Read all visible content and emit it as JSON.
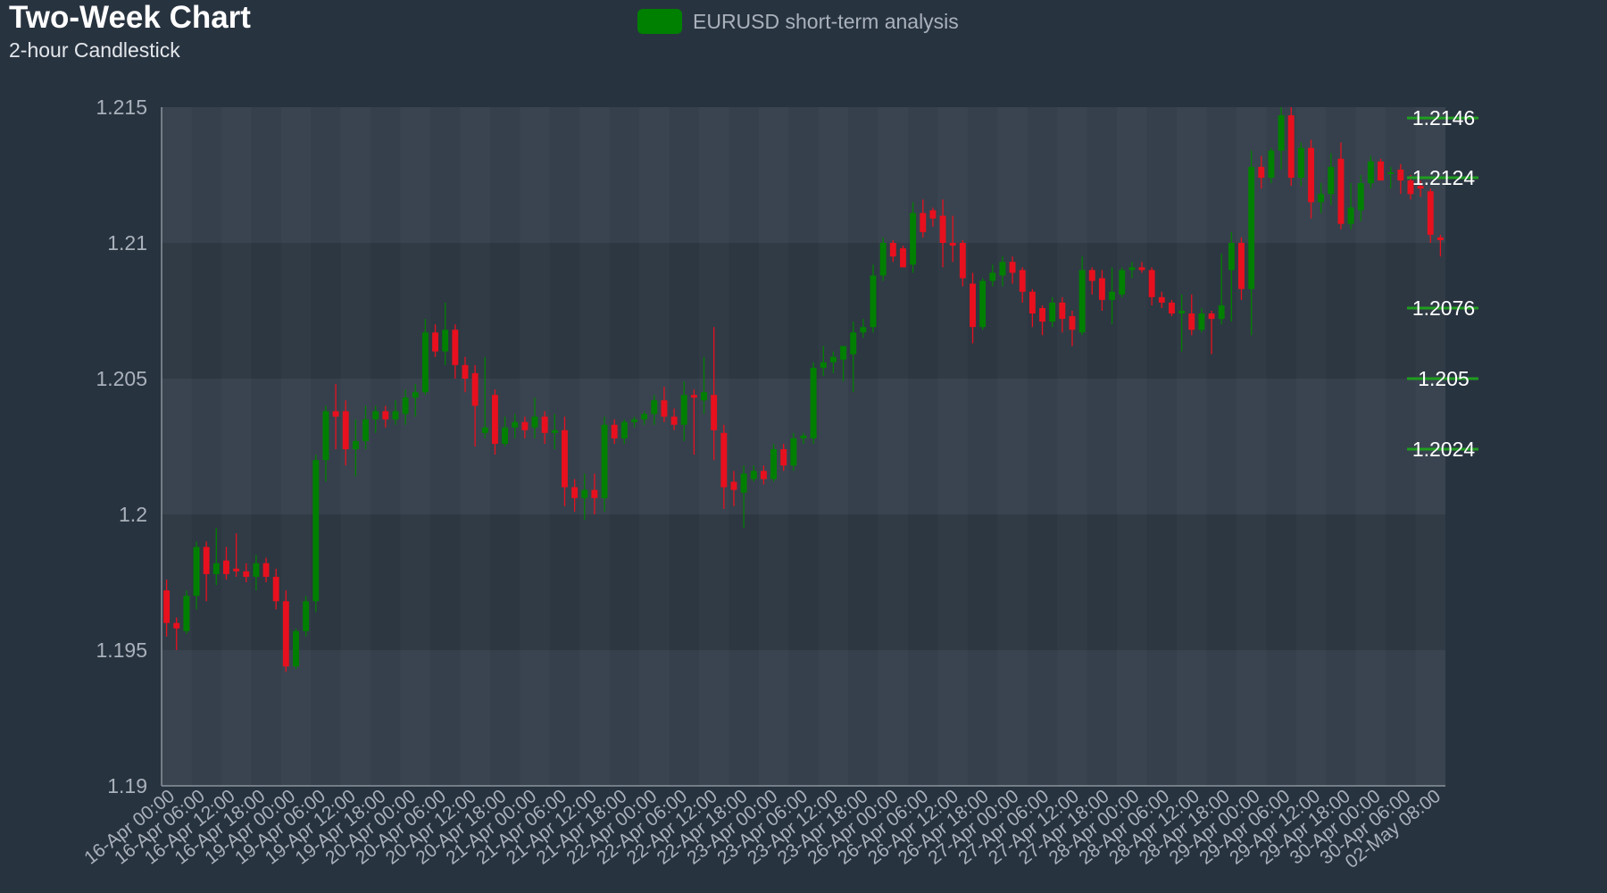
{
  "chart_data": {
    "type": "candlestick",
    "title": "Two-Week Chart",
    "subtitle": "2-hour Candlestick",
    "legend": {
      "label": "EURUSD short-term analysis",
      "color": "#008000",
      "position": "top-center"
    },
    "ylim": [
      1.19,
      1.215
    ],
    "yticks": [
      "1.19",
      "1.195",
      "1.2",
      "1.205",
      "1.21",
      "1.215"
    ],
    "xlabels": [
      "16-Apr 00:00",
      "16-Apr 06:00",
      "16-Apr 12:00",
      "16-Apr 18:00",
      "19-Apr 00:00",
      "19-Apr 06:00",
      "19-Apr 12:00",
      "19-Apr 18:00",
      "20-Apr 00:00",
      "20-Apr 06:00",
      "20-Apr 12:00",
      "20-Apr 18:00",
      "21-Apr 00:00",
      "21-Apr 06:00",
      "21-Apr 12:00",
      "21-Apr 18:00",
      "22-Apr 00:00",
      "22-Apr 06:00",
      "22-Apr 12:00",
      "22-Apr 18:00",
      "23-Apr 00:00",
      "23-Apr 06:00",
      "23-Apr 12:00",
      "23-Apr 18:00",
      "26-Apr 00:00",
      "26-Apr 06:00",
      "26-Apr 12:00",
      "26-Apr 18:00",
      "27-Apr 00:00",
      "27-Apr 06:00",
      "27-Apr 12:00",
      "27-Apr 18:00",
      "28-Apr 00:00",
      "28-Apr 06:00",
      "28-Apr 12:00",
      "28-Apr 18:00",
      "29-Apr 00:00",
      "29-Apr 06:00",
      "29-Apr 12:00",
      "29-Apr 18:00",
      "30-Apr 00:00",
      "30-Apr 06:00",
      "02-May 08:00"
    ],
    "levels": [
      {
        "value": 1.2146,
        "label": "1.2146"
      },
      {
        "value": 1.2124,
        "label": "1.2124"
      },
      {
        "value": 1.2076,
        "label": "1.2076"
      },
      {
        "value": 1.205,
        "label": "1.205"
      },
      {
        "value": 1.2024,
        "label": "1.2024"
      }
    ],
    "colors": {
      "up": "#008000",
      "down": "#e8101e",
      "level": "#1f9d1f"
    },
    "candles": [
      {
        "o": 1.1972,
        "h": 1.1976,
        "l": 1.1955,
        "c": 1.196
      },
      {
        "o": 1.196,
        "h": 1.1962,
        "l": 1.195,
        "c": 1.1958
      },
      {
        "o": 1.1957,
        "h": 1.1972,
        "l": 1.1956,
        "c": 1.197
      },
      {
        "o": 1.197,
        "h": 1.199,
        "l": 1.1965,
        "c": 1.1988
      },
      {
        "o": 1.1988,
        "h": 1.199,
        "l": 1.1968,
        "c": 1.1978
      },
      {
        "o": 1.1978,
        "h": 1.1995,
        "l": 1.1974,
        "c": 1.1982
      },
      {
        "o": 1.1983,
        "h": 1.1988,
        "l": 1.1976,
        "c": 1.1978
      },
      {
        "o": 1.198,
        "h": 1.1993,
        "l": 1.1977,
        "c": 1.1979
      },
      {
        "o": 1.1979,
        "h": 1.1982,
        "l": 1.1975,
        "c": 1.1977
      },
      {
        "o": 1.1977,
        "h": 1.1985,
        "l": 1.1972,
        "c": 1.1982
      },
      {
        "o": 1.1982,
        "h": 1.1984,
        "l": 1.1975,
        "c": 1.1977
      },
      {
        "o": 1.1977,
        "h": 1.198,
        "l": 1.1965,
        "c": 1.1968
      },
      {
        "o": 1.1968,
        "h": 1.1972,
        "l": 1.1942,
        "c": 1.1944
      },
      {
        "o": 1.1944,
        "h": 1.1958,
        "l": 1.1943,
        "c": 1.1957
      },
      {
        "o": 1.1957,
        "h": 1.197,
        "l": 1.1955,
        "c": 1.1968
      },
      {
        "o": 1.1968,
        "h": 1.2022,
        "l": 1.1964,
        "c": 1.202
      },
      {
        "o": 1.202,
        "h": 1.204,
        "l": 1.2012,
        "c": 1.2038
      },
      {
        "o": 1.2038,
        "h": 1.2048,
        "l": 1.2024,
        "c": 1.2036
      },
      {
        "o": 1.2038,
        "h": 1.2042,
        "l": 1.2018,
        "c": 1.2024
      },
      {
        "o": 1.2024,
        "h": 1.2035,
        "l": 1.2014,
        "c": 1.2027
      },
      {
        "o": 1.2027,
        "h": 1.204,
        "l": 1.2024,
        "c": 1.2035
      },
      {
        "o": 1.2035,
        "h": 1.204,
        "l": 1.203,
        "c": 1.2038
      },
      {
        "o": 1.2038,
        "h": 1.204,
        "l": 1.2032,
        "c": 1.2035
      },
      {
        "o": 1.2035,
        "h": 1.2042,
        "l": 1.2033,
        "c": 1.2038
      },
      {
        "o": 1.2037,
        "h": 1.2046,
        "l": 1.2033,
        "c": 1.2043
      },
      {
        "o": 1.2043,
        "h": 1.2048,
        "l": 1.2036,
        "c": 1.2045
      },
      {
        "o": 1.2045,
        "h": 1.2072,
        "l": 1.2044,
        "c": 1.2067
      },
      {
        "o": 1.2067,
        "h": 1.207,
        "l": 1.2058,
        "c": 1.206
      },
      {
        "o": 1.206,
        "h": 1.2078,
        "l": 1.2055,
        "c": 1.2068
      },
      {
        "o": 1.2068,
        "h": 1.207,
        "l": 1.205,
        "c": 1.2055
      },
      {
        "o": 1.2055,
        "h": 1.2058,
        "l": 1.2045,
        "c": 1.205
      },
      {
        "o": 1.2052,
        "h": 1.2055,
        "l": 1.2025,
        "c": 1.204
      },
      {
        "o": 1.203,
        "h": 1.2058,
        "l": 1.2028,
        "c": 1.2032
      },
      {
        "o": 1.2044,
        "h": 1.2046,
        "l": 1.2022,
        "c": 1.2026
      },
      {
        "o": 1.2026,
        "h": 1.2036,
        "l": 1.2025,
        "c": 1.2032
      },
      {
        "o": 1.2032,
        "h": 1.2037,
        "l": 1.2028,
        "c": 1.2034
      },
      {
        "o": 1.2034,
        "h": 1.2036,
        "l": 1.2028,
        "c": 1.2031
      },
      {
        "o": 1.2032,
        "h": 1.2043,
        "l": 1.2028,
        "c": 1.2036
      },
      {
        "o": 1.2036,
        "h": 1.2038,
        "l": 1.2026,
        "c": 1.203
      },
      {
        "o": 1.203,
        "h": 1.2037,
        "l": 1.2024,
        "c": 1.2031
      },
      {
        "o": 1.2031,
        "h": 1.2036,
        "l": 1.2003,
        "c": 1.201
      },
      {
        "o": 1.201,
        "h": 1.2013,
        "l": 1.2001,
        "c": 1.2006
      },
      {
        "o": 1.2006,
        "h": 1.2015,
        "l": 1.1998,
        "c": 1.2009
      },
      {
        "o": 1.2009,
        "h": 1.2015,
        "l": 1.2,
        "c": 1.2006
      },
      {
        "o": 1.2006,
        "h": 1.2036,
        "l": 1.2001,
        "c": 1.2033
      },
      {
        "o": 1.2033,
        "h": 1.2035,
        "l": 1.2026,
        "c": 1.2028
      },
      {
        "o": 1.2028,
        "h": 1.2035,
        "l": 1.2026,
        "c": 1.2034
      },
      {
        "o": 1.2034,
        "h": 1.2036,
        "l": 1.2032,
        "c": 1.2035
      },
      {
        "o": 1.2035,
        "h": 1.2038,
        "l": 1.2033,
        "c": 1.2037
      },
      {
        "o": 1.2037,
        "h": 1.2044,
        "l": 1.2033,
        "c": 1.2042
      },
      {
        "o": 1.2042,
        "h": 1.2047,
        "l": 1.2034,
        "c": 1.2036
      },
      {
        "o": 1.2036,
        "h": 1.2039,
        "l": 1.2031,
        "c": 1.2033
      },
      {
        "o": 1.2033,
        "h": 1.2049,
        "l": 1.2027,
        "c": 1.2044
      },
      {
        "o": 1.2044,
        "h": 1.2046,
        "l": 1.2022,
        "c": 1.2043
      },
      {
        "o": 1.2042,
        "h": 1.2058,
        "l": 1.2037,
        "c": 1.2045
      },
      {
        "o": 1.2044,
        "h": 1.2069,
        "l": 1.202,
        "c": 1.2031
      },
      {
        "o": 1.203,
        "h": 1.2033,
        "l": 1.2002,
        "c": 1.201
      },
      {
        "o": 1.2012,
        "h": 1.2016,
        "l": 1.2003,
        "c": 1.2009
      },
      {
        "o": 1.2008,
        "h": 1.2018,
        "l": 1.1995,
        "c": 1.2015
      },
      {
        "o": 1.2013,
        "h": 1.2018,
        "l": 1.2012,
        "c": 1.2016
      },
      {
        "o": 1.2016,
        "h": 1.2018,
        "l": 1.2011,
        "c": 1.2013
      },
      {
        "o": 1.2013,
        "h": 1.2026,
        "l": 1.2012,
        "c": 1.2024
      },
      {
        "o": 1.2024,
        "h": 1.2026,
        "l": 1.2016,
        "c": 1.2018
      },
      {
        "o": 1.2018,
        "h": 1.203,
        "l": 1.2016,
        "c": 1.2028
      },
      {
        "o": 1.2028,
        "h": 1.203,
        "l": 1.2026,
        "c": 1.2029
      },
      {
        "o": 1.2028,
        "h": 1.2056,
        "l": 1.2026,
        "c": 1.2054
      },
      {
        "o": 1.2054,
        "h": 1.2062,
        "l": 1.2051,
        "c": 1.2056
      },
      {
        "o": 1.2056,
        "h": 1.206,
        "l": 1.2052,
        "c": 1.2058
      },
      {
        "o": 1.2057,
        "h": 1.2062,
        "l": 1.2049,
        "c": 1.2062
      },
      {
        "o": 1.2059,
        "h": 1.2071,
        "l": 1.2045,
        "c": 1.2067
      },
      {
        "o": 1.2067,
        "h": 1.2072,
        "l": 1.2065,
        "c": 1.2069
      },
      {
        "o": 1.2069,
        "h": 1.2092,
        "l": 1.2067,
        "c": 1.2088
      },
      {
        "o": 1.2088,
        "h": 1.2102,
        "l": 1.2086,
        "c": 1.21
      },
      {
        "o": 1.21,
        "h": 1.2101,
        "l": 1.2093,
        "c": 1.2095
      },
      {
        "o": 1.2098,
        "h": 1.2099,
        "l": 1.2091,
        "c": 1.2091
      },
      {
        "o": 1.2092,
        "h": 1.2115,
        "l": 1.2089,
        "c": 1.2111
      },
      {
        "o": 1.2111,
        "h": 1.2116,
        "l": 1.2102,
        "c": 1.2104
      },
      {
        "o": 1.2112,
        "h": 1.2113,
        "l": 1.2106,
        "c": 1.2109
      },
      {
        "o": 1.211,
        "h": 1.2116,
        "l": 1.2091,
        "c": 1.21
      },
      {
        "o": 1.21,
        "h": 1.211,
        "l": 1.2093,
        "c": 1.2099
      },
      {
        "o": 1.21,
        "h": 1.2101,
        "l": 1.2084,
        "c": 1.2087
      },
      {
        "o": 1.2085,
        "h": 1.2089,
        "l": 1.2063,
        "c": 1.2069
      },
      {
        "o": 1.2069,
        "h": 1.2087,
        "l": 1.2068,
        "c": 1.2086
      },
      {
        "o": 1.2086,
        "h": 1.2092,
        "l": 1.2084,
        "c": 1.2089
      },
      {
        "o": 1.2088,
        "h": 1.2095,
        "l": 1.2084,
        "c": 1.2093
      },
      {
        "o": 1.2093,
        "h": 1.2095,
        "l": 1.2085,
        "c": 1.2089
      },
      {
        "o": 1.209,
        "h": 1.2091,
        "l": 1.2078,
        "c": 1.2082
      },
      {
        "o": 1.2082,
        "h": 1.2083,
        "l": 1.2069,
        "c": 1.2074
      },
      {
        "o": 1.2076,
        "h": 1.2077,
        "l": 1.2066,
        "c": 1.2071
      },
      {
        "o": 1.2071,
        "h": 1.208,
        "l": 1.2069,
        "c": 1.2078
      },
      {
        "o": 1.2078,
        "h": 1.208,
        "l": 1.2067,
        "c": 1.2072
      },
      {
        "o": 1.2073,
        "h": 1.2075,
        "l": 1.2062,
        "c": 1.2068
      },
      {
        "o": 1.2067,
        "h": 1.2095,
        "l": 1.2066,
        "c": 1.209
      },
      {
        "o": 1.209,
        "h": 1.2091,
        "l": 1.2081,
        "c": 1.2086
      },
      {
        "o": 1.2087,
        "h": 1.209,
        "l": 1.2075,
        "c": 1.2079
      },
      {
        "o": 1.2079,
        "h": 1.2091,
        "l": 1.207,
        "c": 1.2082
      },
      {
        "o": 1.2081,
        "h": 1.2091,
        "l": 1.208,
        "c": 1.209
      },
      {
        "o": 1.209,
        "h": 1.2093,
        "l": 1.2087,
        "c": 1.2091
      },
      {
        "o": 1.2091,
        "h": 1.2093,
        "l": 1.2089,
        "c": 1.209
      },
      {
        "o": 1.209,
        "h": 1.2091,
        "l": 1.2077,
        "c": 1.208
      },
      {
        "o": 1.208,
        "h": 1.2082,
        "l": 1.2076,
        "c": 1.2078
      },
      {
        "o": 1.2078,
        "h": 1.2079,
        "l": 1.2073,
        "c": 1.2074
      },
      {
        "o": 1.2074,
        "h": 1.2081,
        "l": 1.206,
        "c": 1.2075
      },
      {
        "o": 1.2074,
        "h": 1.2081,
        "l": 1.2066,
        "c": 1.2068
      },
      {
        "o": 1.2068,
        "h": 1.2076,
        "l": 1.2067,
        "c": 1.2074
      },
      {
        "o": 1.2074,
        "h": 1.2075,
        "l": 1.2059,
        "c": 1.2072
      },
      {
        "o": 1.2072,
        "h": 1.2096,
        "l": 1.207,
        "c": 1.2077
      },
      {
        "o": 1.209,
        "h": 1.2104,
        "l": 1.2071,
        "c": 1.21
      },
      {
        "o": 1.21,
        "h": 1.2102,
        "l": 1.2079,
        "c": 1.2083
      },
      {
        "o": 1.2083,
        "h": 1.2134,
        "l": 1.2066,
        "c": 1.2128
      },
      {
        "o": 1.2128,
        "h": 1.2132,
        "l": 1.212,
        "c": 1.2124
      },
      {
        "o": 1.2124,
        "h": 1.2135,
        "l": 1.2122,
        "c": 1.2134
      },
      {
        "o": 1.2134,
        "h": 1.215,
        "l": 1.2127,
        "c": 1.2147
      },
      {
        "o": 1.2147,
        "h": 1.215,
        "l": 1.2121,
        "c": 1.2124
      },
      {
        "o": 1.2124,
        "h": 1.2137,
        "l": 1.2121,
        "c": 1.2135
      },
      {
        "o": 1.2135,
        "h": 1.2138,
        "l": 1.2109,
        "c": 1.2115
      },
      {
        "o": 1.2115,
        "h": 1.2122,
        "l": 1.2111,
        "c": 1.2118
      },
      {
        "o": 1.2118,
        "h": 1.2133,
        "l": 1.2114,
        "c": 1.2128
      },
      {
        "o": 1.2131,
        "h": 1.2137,
        "l": 1.2105,
        "c": 1.2107
      },
      {
        "o": 1.2107,
        "h": 1.2122,
        "l": 1.2105,
        "c": 1.2113
      },
      {
        "o": 1.2112,
        "h": 1.2125,
        "l": 1.2108,
        "c": 1.2122
      },
      {
        "o": 1.2122,
        "h": 1.2132,
        "l": 1.212,
        "c": 1.213
      },
      {
        "o": 1.213,
        "h": 1.2131,
        "l": 1.2123,
        "c": 1.2123
      },
      {
        "o": 1.2126,
        "h": 1.2128,
        "l": 1.212,
        "c": 1.2126
      },
      {
        "o": 1.2127,
        "h": 1.2129,
        "l": 1.2118,
        "c": 1.2123
      },
      {
        "o": 1.2123,
        "h": 1.2125,
        "l": 1.2116,
        "c": 1.2118
      },
      {
        "o": 1.2121,
        "h": 1.2123,
        "l": 1.2117,
        "c": 1.212
      },
      {
        "o": 1.2119,
        "h": 1.212,
        "l": 1.21,
        "c": 1.2103
      },
      {
        "o": 1.2102,
        "h": 1.2103,
        "l": 1.2095,
        "c": 1.2101
      }
    ]
  }
}
